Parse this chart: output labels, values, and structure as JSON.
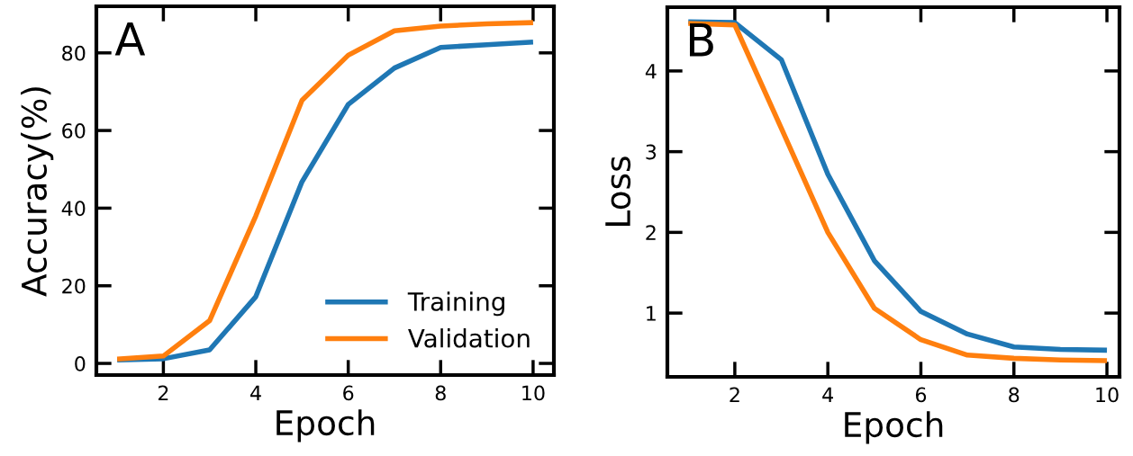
{
  "chart_data": [
    {
      "type": "line",
      "xlabel": "Epoch",
      "ylabel": "Accuracy(%)",
      "annotations": [
        "A"
      ],
      "x": [
        1,
        2,
        3,
        4,
        5,
        6,
        7,
        8,
        9,
        10
      ],
      "series": [
        {
          "name": "Training",
          "color": "#1f77b4",
          "values": [
            0.9,
            1.2,
            3.5,
            17.2,
            46.8,
            66.7,
            76.1,
            81.4,
            82.1,
            82.8
          ]
        },
        {
          "name": "Validation",
          "color": "#ff7f0e",
          "values": [
            1.1,
            1.9,
            11,
            38,
            67.8,
            79.4,
            85.7,
            86.9,
            87.5,
            87.8
          ]
        }
      ],
      "xlim": [
        0.55,
        10.45
      ],
      "ylim": [
        -3,
        92
      ],
      "xticks": [
        2,
        4,
        6,
        8,
        10
      ],
      "yticks": [
        0,
        20,
        40,
        60,
        80
      ],
      "legend": "bottom right",
      "grid": false
    },
    {
      "type": "line",
      "xlabel": "Epoch",
      "ylabel": "Loss",
      "annotations": [
        "B"
      ],
      "x": [
        1,
        2,
        3,
        4,
        5,
        6,
        7,
        8,
        9,
        10
      ],
      "series": [
        {
          "color": "#1f77b4",
          "values": [
            4.61,
            4.6,
            4.14,
            2.72,
            1.65,
            1.02,
            0.74,
            0.58,
            0.55,
            0.54
          ]
        },
        {
          "color": "#ff7f0e",
          "values": [
            4.59,
            4.57,
            3.29,
            2.0,
            1.06,
            0.67,
            0.48,
            0.44,
            0.42,
            0.41
          ]
        }
      ],
      "xlim": [
        0.55,
        10.27
      ],
      "ylim": [
        0.21,
        4.79
      ],
      "xticks": [
        2,
        4,
        6,
        8,
        10
      ],
      "yticks": [
        1,
        2,
        3,
        4
      ],
      "legend": false,
      "grid": false
    }
  ]
}
